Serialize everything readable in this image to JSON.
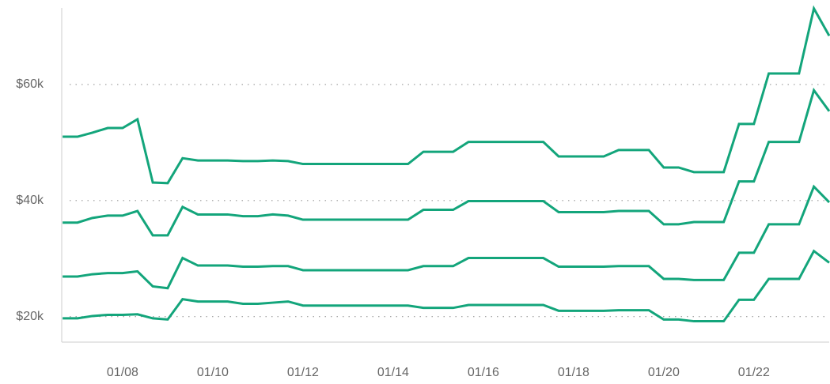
{
  "chart_data": {
    "type": "line",
    "x": [
      6.67,
      7,
      7.33,
      7.67,
      8,
      8.33,
      8.67,
      9,
      9.33,
      9.67,
      10,
      10.33,
      10.67,
      11,
      11.33,
      11.67,
      12,
      12.33,
      12.67,
      13,
      13.33,
      13.67,
      14,
      14.33,
      14.67,
      15,
      15.33,
      15.67,
      16,
      16.33,
      16.67,
      17,
      17.33,
      17.67,
      18,
      18.33,
      18.67,
      19,
      19.33,
      19.67,
      20,
      20.33,
      20.67,
      21,
      21.33,
      21.67,
      22,
      22.33,
      22.67,
      23,
      23.33,
      23.67
    ],
    "series": [
      {
        "color": "#13a57b",
        "values": [
          51.0,
          51.0,
          51.7,
          52.5,
          52.5,
          54.0,
          43.1,
          43.0,
          47.3,
          46.9,
          46.9,
          46.9,
          46.8,
          46.8,
          46.9,
          46.8,
          46.3,
          46.3,
          46.3,
          46.3,
          46.3,
          46.3,
          46.3,
          46.3,
          48.4,
          48.4,
          48.4,
          50.1,
          50.1,
          50.1,
          50.1,
          50.1,
          50.1,
          47.6,
          47.6,
          47.6,
          47.6,
          48.7,
          48.7,
          48.7,
          45.7,
          45.7,
          44.9,
          44.9,
          44.9,
          53.2,
          53.2,
          61.9,
          61.9,
          61.9,
          73.1,
          68.4
        ]
      },
      {
        "color": "#13a57b",
        "values": [
          36.2,
          36.2,
          37.0,
          37.4,
          37.4,
          38.2,
          34.0,
          34.0,
          38.9,
          37.6,
          37.6,
          37.6,
          37.3,
          37.3,
          37.6,
          37.4,
          36.7,
          36.7,
          36.7,
          36.7,
          36.7,
          36.7,
          36.7,
          36.7,
          38.4,
          38.4,
          38.4,
          39.9,
          39.9,
          39.9,
          39.9,
          39.9,
          39.9,
          38.0,
          38.0,
          38.0,
          38.0,
          38.2,
          38.2,
          38.2,
          35.9,
          35.9,
          36.3,
          36.3,
          36.3,
          43.3,
          43.3,
          50.1,
          50.1,
          50.1,
          59.0,
          55.4
        ]
      },
      {
        "color": "#13a57b",
        "values": [
          26.9,
          26.9,
          27.3,
          27.5,
          27.5,
          27.8,
          25.2,
          24.9,
          30.1,
          28.8,
          28.8,
          28.8,
          28.6,
          28.6,
          28.7,
          28.7,
          28.0,
          28.0,
          28.0,
          28.0,
          28.0,
          28.0,
          28.0,
          28.0,
          28.7,
          28.7,
          28.7,
          30.1,
          30.1,
          30.1,
          30.1,
          30.1,
          30.1,
          28.6,
          28.6,
          28.6,
          28.6,
          28.7,
          28.7,
          28.7,
          26.5,
          26.5,
          26.3,
          26.3,
          26.3,
          31.0,
          31.0,
          35.9,
          35.9,
          35.9,
          42.4,
          39.7
        ]
      },
      {
        "color": "#13a57b",
        "values": [
          19.7,
          19.7,
          20.1,
          20.3,
          20.3,
          20.4,
          19.7,
          19.5,
          23.0,
          22.6,
          22.6,
          22.6,
          22.2,
          22.2,
          22.4,
          22.6,
          21.9,
          21.9,
          21.9,
          21.9,
          21.9,
          21.9,
          21.9,
          21.9,
          21.5,
          21.5,
          21.5,
          22.0,
          22.0,
          22.0,
          22.0,
          22.0,
          22.0,
          21.0,
          21.0,
          21.0,
          21.0,
          21.1,
          21.1,
          21.1,
          19.5,
          19.5,
          19.2,
          19.2,
          19.2,
          22.9,
          22.9,
          26.5,
          26.5,
          26.5,
          31.3,
          29.3
        ]
      }
    ],
    "xlim": [
      6.65,
      23.67
    ],
    "xticks": [
      {
        "value": 8,
        "label": "01/08"
      },
      {
        "value": 10,
        "label": "01/10"
      },
      {
        "value": 12,
        "label": "01/12"
      },
      {
        "value": 14,
        "label": "01/14"
      },
      {
        "value": 16,
        "label": "01/16"
      },
      {
        "value": 18,
        "label": "01/18"
      },
      {
        "value": 20,
        "label": "01/20"
      },
      {
        "value": 22,
        "label": "01/22"
      }
    ],
    "ylim": [
      15.6,
      73.2
    ],
    "yticks": [
      {
        "value": 20,
        "label": "$20k"
      },
      {
        "value": 40,
        "label": "$40k"
      },
      {
        "value": 60,
        "label": "$60k"
      }
    ],
    "grid": true
  }
}
